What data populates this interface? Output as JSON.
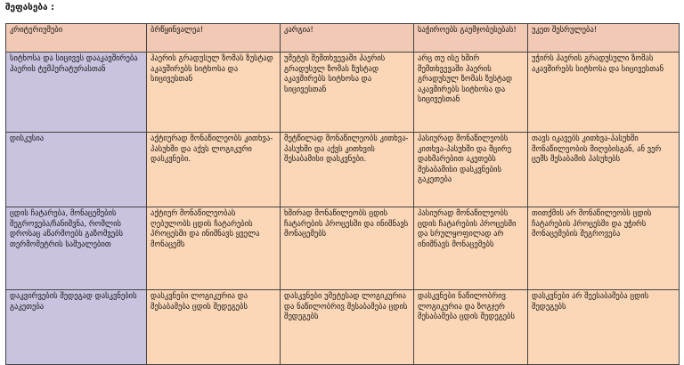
{
  "heading": "შეფასება :",
  "table": {
    "headers": [
      "კრიტერიუმები",
      "ბრწყინვალეა!",
      "კარგია!",
      "საჭიროებს გაუმჯობესებას!",
      "უკეთ შესრულება!"
    ],
    "rows": [
      {
        "criterion": "სიტხოსა და სიცივეს დააკავშირება ჰაერის ტემპერატურასთან",
        "cells": [
          "ჰაერის გრადუსულ ზომას ზუსტად აკავშირებს სიტხოსა და სიცივესთან",
          "უმეტეს შემთხვევაში ჰაერის გრადუსულ ზომას ზუსტად აკავშირებს სიტხოსა და სიცივესთან",
          "არც თუ ისე ხშირ შემთხვევაში ჰაერის გრადუსულ ზომას ზუსტად აკავშირებს სიტხოსა და სიცივესთან",
          "უჭირს ჰაერის გრადუსული ზომას აკავშირებს სიტხოსა და სიცივესთან"
        ]
      },
      {
        "criterion": "დისკუსია",
        "cells": [
          "აქტიურად მონაწილეობს კითხვა- პასუხში და აქვს ლოგიკური დასკვნები.",
          "მეტწილად მონაწილეობს კითხვა- პასუხში და აქვს კითხვის შესაბამისი დასკვნები.",
          "პასიურად მონაწილეობს კითხვა-პასუხში და მცირე დახმარებით აკეთებს შესაბამისი დასკვნების გაკეთება",
          "თავს იკავებს კითხვა-პასუხში მონაწილეობის მიღებისგან, ან ვერ ცემს შესაბამის პასუხებს"
        ]
      },
      {
        "criterion": "ცდის ჩატარება, მონაცემების შეგროვება/ჩანიშვნა, რომლის დროსაც აწარმოებს გაზომვებს თერმომეტრის საშუალებით",
        "cells": [
          "აქტიურ მონაწილეობას ღებულობს ცდის ჩატარების პროცესში და ინიშნავს ყველა მონაცემს",
          "ხშირად მონაწილეობს ცდის ჩატარების პროცესში და ინიშნავს მონაცემებს",
          "პასიურად მონაწილეობს ცდის ჩატარების პროცესში და სრულყოფილად არ ინიშნავს მონაცემებს",
          "თითქმის არ მონაწილეობს ცდის ჩატარების პროცესში და უჭირს მონაცემების შეგროვება"
        ]
      },
      {
        "criterion": "დაკვირვების შედეგად დასკვნების გაკეთება",
        "cells": [
          "დასკვნები ლოგიკურია და შესაბამება ცდის შედეგებს",
          "დასკვნები უმეტესად ლოგიკურია და ნაწილობრივ შესაბამება ცდის შედეგებს",
          "დასკვნები ნაწილობრივ ლოგიკურია და ზოგჯერ შესაბამება ცდის შედეგებს",
          "დასკვნები არ შეესაბამება ცდის შედეგებს"
        ]
      }
    ]
  }
}
